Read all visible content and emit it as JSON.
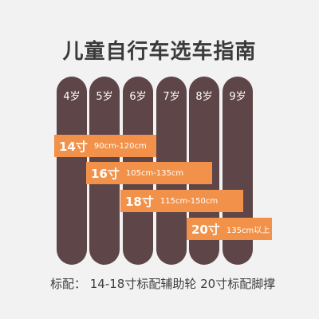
{
  "title": "儿童自行车选车指南",
  "ages": [
    "4岁",
    "5岁",
    "6岁",
    "7岁",
    "8岁",
    "9岁"
  ],
  "bands": [
    {
      "size": "14寸",
      "range": "90cm-120cm"
    },
    {
      "size": "16寸",
      "range": "105cm-135cm"
    },
    {
      "size": "18寸",
      "range": "115cm-150cm"
    },
    {
      "size": "20寸",
      "range": "135cm以上"
    }
  ],
  "note": "标配： 14-18寸标配辅助轮  20寸标配脚撑",
  "colors": {
    "bar": "#5e4547",
    "band": "#f2924a",
    "background": "#f2f2f2"
  }
}
